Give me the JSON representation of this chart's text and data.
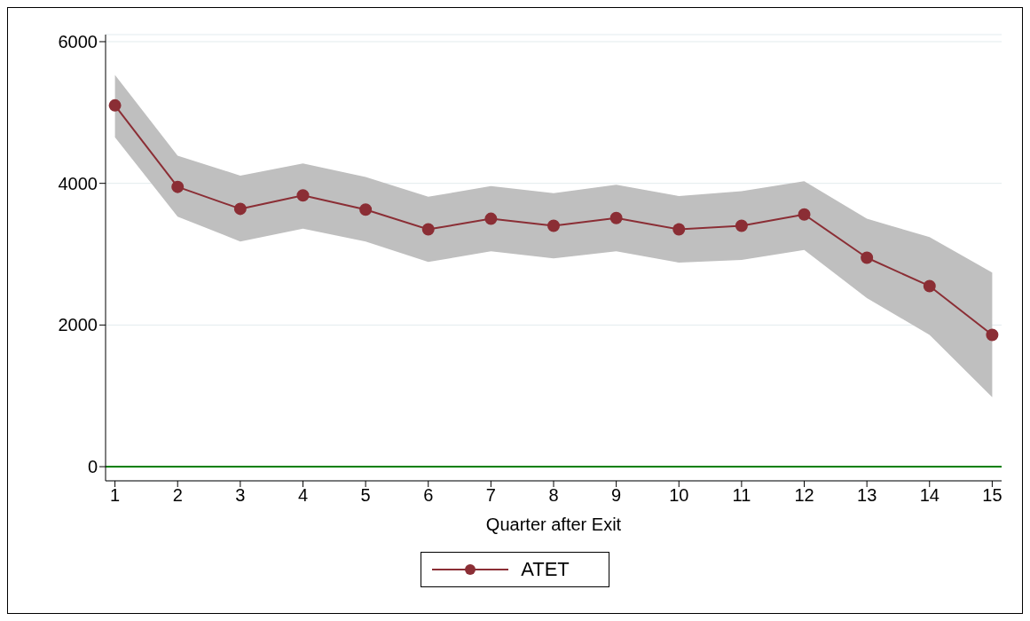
{
  "chart_data": {
    "type": "line",
    "xlabel": "Quarter after Exit",
    "x": [
      1,
      2,
      3,
      4,
      5,
      6,
      7,
      8,
      9,
      10,
      11,
      12,
      13,
      14,
      15
    ],
    "series": [
      {
        "name": "ATET",
        "color": "#8b2e35",
        "values": [
          5100,
          3950,
          3640,
          3830,
          3630,
          3350,
          3500,
          3400,
          3510,
          3350,
          3400,
          3560,
          2950,
          2550,
          1860
        ],
        "lower": [
          4650,
          3530,
          3180,
          3360,
          3180,
          2890,
          3040,
          2940,
          3040,
          2880,
          2920,
          3060,
          2380,
          1860,
          980
        ],
        "upper": [
          5530,
          4390,
          4110,
          4280,
          4090,
          3810,
          3960,
          3860,
          3980,
          3820,
          3890,
          4030,
          3500,
          3240,
          2740
        ]
      }
    ],
    "xlim": [
      0.85,
      15.15
    ],
    "xticks": [
      1,
      2,
      3,
      4,
      5,
      6,
      7,
      8,
      9,
      10,
      11,
      12,
      13,
      14,
      15
    ],
    "ylim": [
      -200,
      6100
    ],
    "yticks": [
      0,
      2000,
      4000,
      6000
    ],
    "ref_lines": [
      {
        "axis": "y",
        "value": 0,
        "color": "#008000"
      }
    ],
    "grid": "y",
    "legend": "bottom",
    "marker": "circle",
    "line_style": "solid"
  }
}
